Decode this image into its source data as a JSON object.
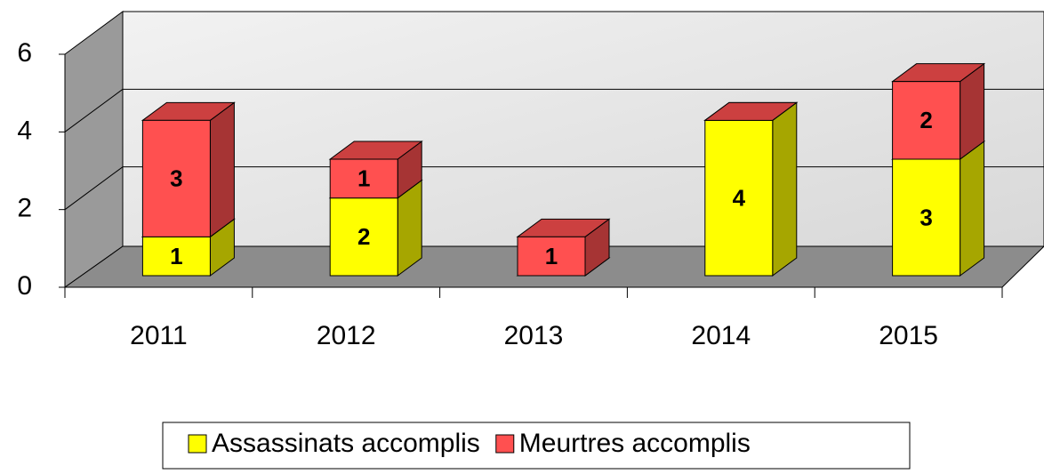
{
  "chart_data": {
    "type": "bar",
    "stacked": true,
    "categories": [
      "2011",
      "2012",
      "2013",
      "2014",
      "2015"
    ],
    "series": [
      {
        "name": "Assassinats accomplis",
        "color": "#ffff00",
        "values": [
          1,
          2,
          0,
          4,
          3
        ]
      },
      {
        "name": "Meurtres accomplis",
        "color": "#ff5050",
        "values": [
          3,
          1,
          1,
          0,
          2
        ]
      }
    ],
    "ylim": [
      0,
      6
    ],
    "yticks": [
      0,
      2,
      4,
      6
    ],
    "grid": true,
    "legend": "bottom"
  }
}
